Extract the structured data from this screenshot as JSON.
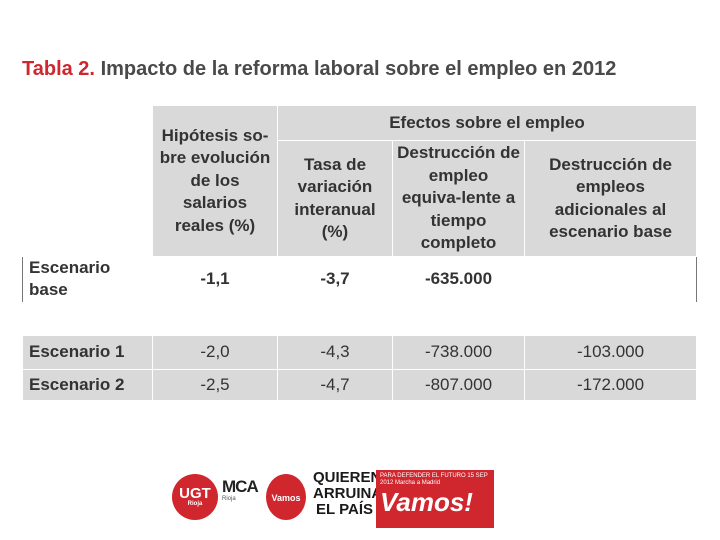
{
  "title": {
    "number": "Tabla 2.",
    "text": "Impacto de la reforma laboral sobre el empleo en 2012"
  },
  "table": {
    "col1_header": "Hipótesis so-bre evolución de los salarios reales (%)",
    "group_header": "Efectos sobre el empleo",
    "sub_headers": [
      "Tasa de variación interanual (%)",
      "Destrucción de empleo equiva-lente a tiempo completo",
      "Destrucción de empleos adicionales al escenario base"
    ],
    "rows": [
      {
        "label": "Escenario base",
        "values": [
          "-1,1",
          "-3,7",
          "-635.000",
          ""
        ]
      },
      {
        "label": "Escenario 1",
        "values": [
          "-2,0",
          "-4,3",
          "-738.000",
          "-103.000"
        ]
      },
      {
        "label": "Escenario 2",
        "values": [
          "-2,5",
          "-4,7",
          "-807.000",
          "-172.000"
        ]
      }
    ]
  },
  "logos": {
    "ugt": "UGT",
    "ugt_sub": "Rioja",
    "mca": "MCA",
    "mca_sub": "Rioja",
    "vamos_small": "Vamos",
    "quieren": "QUIEREN ARRUINAR EL PAÍS",
    "banner_top": "PARA DEFENDER EL FUTURO 15 SEP 2012 Marcha a Madrid",
    "banner_main": "Vamos!"
  },
  "colors": {
    "accent": "#d0262e",
    "cell_gray": "#d9d9d9",
    "title_gray": "#4a4a4a"
  }
}
